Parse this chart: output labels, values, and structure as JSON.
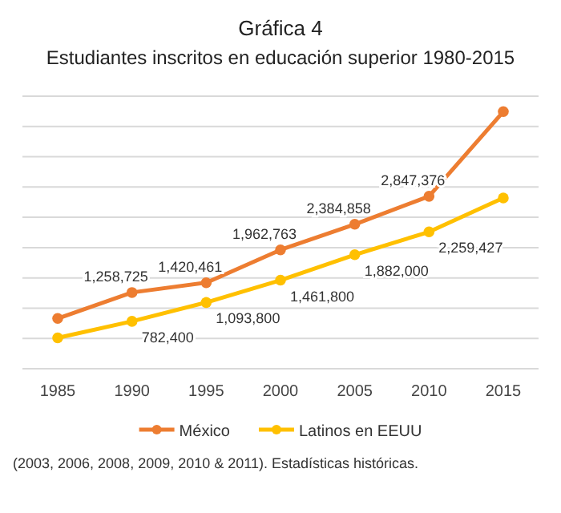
{
  "chart_data": {
    "type": "line",
    "title": "Gráfica 4",
    "subtitle": "Estudiantes inscritos en educación superior 1980-2015",
    "categories": [
      "1985",
      "1990",
      "1995",
      "2000",
      "2005",
      "2010",
      "2015"
    ],
    "series": [
      {
        "name": "México",
        "color": "#ed7d31",
        "values": [
          830000,
          1258725,
          1420461,
          1962763,
          2384858,
          2847376,
          4244400
        ],
        "value_labels": [
          null,
          "1,258,725",
          "1,420,461",
          "1,962,763",
          "2,384,858",
          "2,847,376",
          null
        ]
      },
      {
        "name": "Latinos en EEUU",
        "color": "#ffc000",
        "values": [
          510000,
          782400,
          1093800,
          1461800,
          1882000,
          2259427,
          2820000
        ],
        "value_labels": [
          null,
          "782,400",
          "1,093,800",
          "1,461,800",
          "1,882,000",
          "2,259,427",
          null
        ]
      }
    ],
    "ylim": [
      0,
      4500000
    ],
    "yticks": [
      0,
      500000,
      1000000,
      1500000,
      2000000,
      2500000,
      3000000,
      3500000,
      4000000,
      4500000
    ],
    "tick_labels": "x",
    "grid": "y",
    "legend": "bottom",
    "marker": "circle",
    "line_style": "solid",
    "annotations": [
      "(2003, 2006, 2008, 2009, 2010 & 2011). Estadísticas históricas."
    ]
  }
}
